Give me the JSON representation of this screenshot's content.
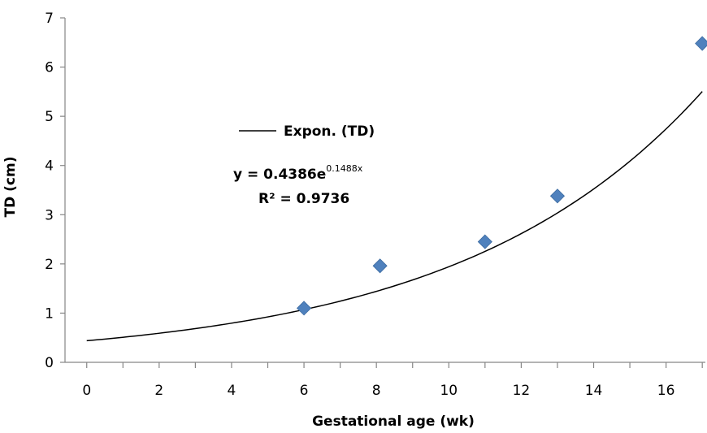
{
  "chart_data": {
    "type": "scatter",
    "xlabel": "Gestational age (wk)",
    "ylabel": "TD (cm)",
    "xlim": [
      -0.6,
      17.4
    ],
    "ylim": [
      0,
      7
    ],
    "x_ticks": [
      "0",
      "2",
      "4",
      "6",
      "8",
      "10",
      "12",
      "14",
      "16"
    ],
    "y_ticks": [
      "0",
      "1",
      "2",
      "3",
      "4",
      "5",
      "6",
      "7"
    ],
    "grid": false,
    "series": [
      {
        "values": [
          {
            "x": 6,
            "y": 1.1
          },
          {
            "x": 8.1,
            "y": 1.96
          },
          {
            "x": 11,
            "y": 2.45
          },
          {
            "x": 13,
            "y": 3.38
          },
          {
            "x": 17,
            "y": 6.48
          }
        ],
        "color": "#4F81BD",
        "marker": "diamond"
      }
    ],
    "trendline": {
      "legend_label": "Expon. (TD)",
      "a": 0.4386,
      "b": 0.1488,
      "x_range": [
        0,
        17
      ],
      "color": "#000000",
      "equation_prefix": "y = 0.4386e",
      "equation_exponent": "0.1488x",
      "r_squared": "R² = 0.9736"
    },
    "legend_position": "middle-left"
  }
}
